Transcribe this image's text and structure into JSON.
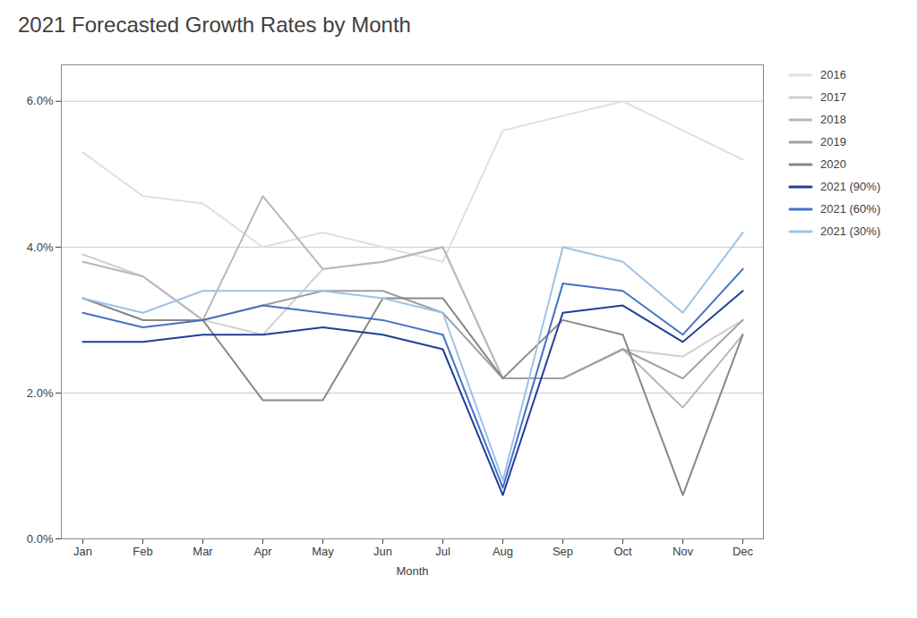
{
  "chart_data": {
    "type": "line",
    "title": "2021 Forecasted Growth Rates by Month",
    "xlabel": "Month",
    "categories": [
      "Jan",
      "Feb",
      "Mar",
      "Apr",
      "May",
      "Jun",
      "Jul",
      "Aug",
      "Sep",
      "Oct",
      "Nov",
      "Dec"
    ],
    "series": [
      {
        "name": "2016",
        "color": "#e0e0e0",
        "values": [
          0.053,
          0.047,
          0.046,
          0.04,
          0.042,
          0.04,
          0.038,
          0.056,
          0.058,
          0.06,
          0.056,
          0.052
        ]
      },
      {
        "name": "2017",
        "color": "#d0d0d0",
        "values": [
          0.039,
          0.036,
          0.03,
          0.028,
          0.037,
          0.038,
          0.04,
          0.022,
          0.022,
          0.026,
          0.025,
          0.03
        ]
      },
      {
        "name": "2018",
        "color": "#b8b8b8",
        "values": [
          0.038,
          0.036,
          0.03,
          0.047,
          0.037,
          0.038,
          0.04,
          0.022,
          0.022,
          0.026,
          0.018,
          0.028
        ]
      },
      {
        "name": "2019",
        "color": "#a0a0a0",
        "values": [
          0.033,
          0.03,
          0.03,
          0.032,
          0.034,
          0.034,
          0.031,
          0.022,
          0.022,
          0.026,
          0.022,
          0.03
        ]
      },
      {
        "name": "2020",
        "color": "#888888",
        "values": [
          0.033,
          0.03,
          0.03,
          0.019,
          0.019,
          0.033,
          0.033,
          0.022,
          0.03,
          0.028,
          0.006,
          0.028
        ]
      },
      {
        "name": "2021 (90%)",
        "color": "#1f3f99",
        "values": [
          0.027,
          0.027,
          0.028,
          0.028,
          0.029,
          0.028,
          0.026,
          0.006,
          0.031,
          0.032,
          0.027,
          0.034
        ]
      },
      {
        "name": "2021 (60%)",
        "color": "#4472c4",
        "values": [
          0.031,
          0.029,
          0.03,
          0.032,
          0.031,
          0.03,
          0.028,
          0.007,
          0.035,
          0.034,
          0.028,
          0.037
        ]
      },
      {
        "name": "2021 (30%)",
        "color": "#9dc3e6",
        "values": [
          0.033,
          0.031,
          0.034,
          0.034,
          0.034,
          0.033,
          0.031,
          0.008,
          0.04,
          0.038,
          0.031,
          0.042
        ]
      }
    ],
    "ylim": [
      0.0,
      0.065
    ],
    "yticks": [
      {
        "value": 0.0,
        "label": "0.0%"
      },
      {
        "value": 0.02,
        "label": "2.0%"
      },
      {
        "value": 0.04,
        "label": "4.0%"
      },
      {
        "value": 0.06,
        "label": "6.0%"
      }
    ],
    "grid": true,
    "legend": "right"
  }
}
